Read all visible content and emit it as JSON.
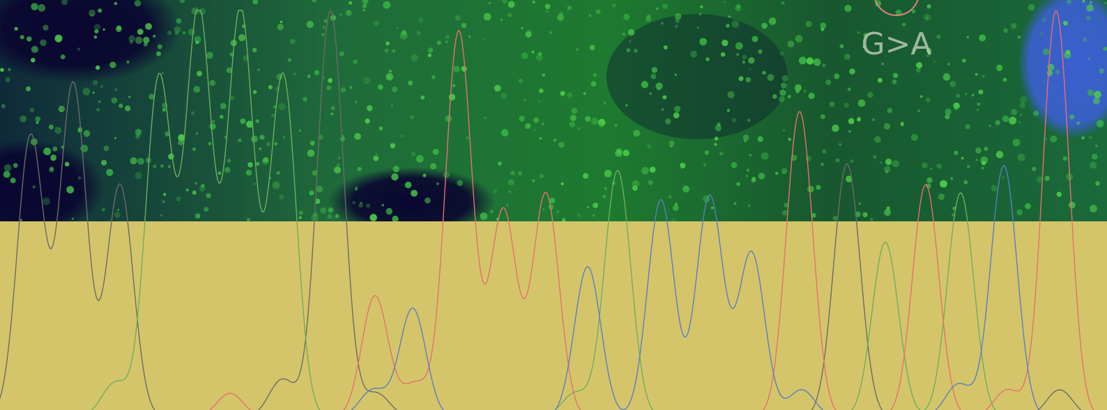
{
  "annotation": "G>A"
}
